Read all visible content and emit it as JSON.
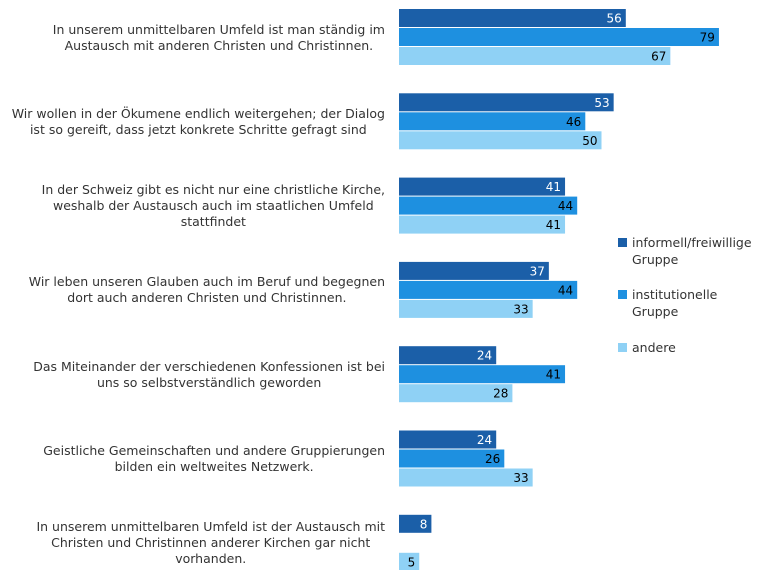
{
  "chart_data": {
    "type": "bar",
    "orientation": "horizontal",
    "categories": [
      [
        "In unserem unmittelbaren Umfeld ist man ständig im",
        "Austausch mit anderen Christen und Christinnen."
      ],
      [
        "Wir wollen in der Ökumene endlich weitergehen; der Dialog",
        "ist so gereift, dass jetzt konkrete Schritte gefragt sind"
      ],
      [
        "In der Schweiz gibt es nicht nur eine christliche Kirche,",
        "weshalb der Austausch auch im staatlichen Umfeld",
        "stattfindet"
      ],
      [
        "Wir leben unseren Glauben auch im Beruf und begegnen",
        "dort auch anderen Christen und Christinnen."
      ],
      [
        "Das Miteinander der verschiedenen Konfessionen ist bei",
        "uns so selbstverständlich geworden"
      ],
      [
        "Geistliche Gemeinschaften und andere Gruppierungen",
        "bilden ein weltweites Netzwerk."
      ],
      [
        "In unserem unmittelbaren Umfeld ist der Austausch mit",
        "Christen und Christinnen anderer Kirchen gar nicht",
        "vorhanden."
      ]
    ],
    "series": [
      {
        "name": "informell/freiwillige Gruppe",
        "color": "#1b5fa8",
        "label_color": "#ffffff",
        "values": [
          56,
          53,
          41,
          37,
          24,
          24,
          8
        ]
      },
      {
        "name": "institutionelle Gruppe",
        "color": "#1e90e0",
        "label_color": "#000000",
        "values": [
          79,
          46,
          44,
          44,
          41,
          26,
          null
        ]
      },
      {
        "name": "andere",
        "color": "#8fd1f5",
        "label_color": "#000000",
        "values": [
          67,
          50,
          41,
          33,
          28,
          33,
          5
        ]
      }
    ],
    "xlim": [
      0,
      100
    ],
    "legend": "right"
  }
}
